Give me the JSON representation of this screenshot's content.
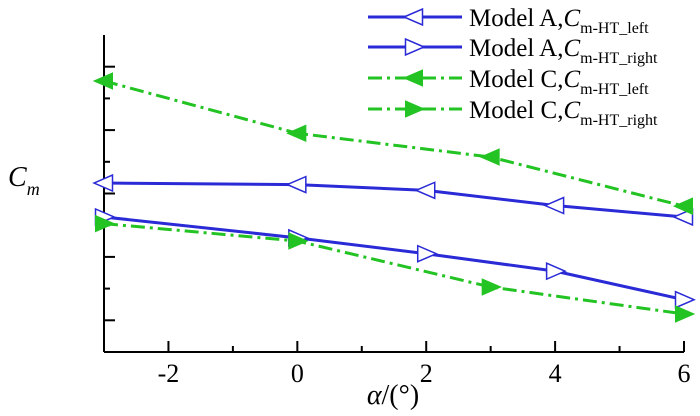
{
  "chart_data": {
    "type": "line",
    "xlabel_italic": "α",
    "xlabel_rest": "/(°)",
    "ylabel_main": "C",
    "ylabel_sub": "m",
    "xlim": [
      -3,
      6
    ],
    "ylim": [
      0,
      1
    ],
    "x_ticks": [
      -2,
      0,
      2,
      4,
      6
    ],
    "x_tick_labels": [
      "-2",
      "0",
      "2",
      "4",
      "6"
    ],
    "y_ticks": [
      0.1,
      0.3,
      0.5,
      0.7,
      0.9
    ],
    "y_tick_labels_shown": false,
    "grid": false,
    "legend_position": "top-right",
    "series": [
      {
        "label_main": "Model A,",
        "label_italic": "C",
        "label_sub": "m-HT_left",
        "color": "#2a2ad6",
        "line_style": "solid",
        "marker": "triangle-left",
        "marker_filled": false,
        "x": [
          -3,
          0,
          2,
          4,
          6
        ],
        "y": [
          0.533,
          0.528,
          0.51,
          0.462,
          0.426
        ]
      },
      {
        "label_main": "Model A,",
        "label_italic": "C",
        "label_sub": "m-HT_right",
        "color": "#2a2ad6",
        "line_style": "solid",
        "marker": "triangle-right",
        "marker_filled": false,
        "x": [
          -3,
          0,
          2,
          4,
          6
        ],
        "y": [
          0.426,
          0.36,
          0.31,
          0.255,
          0.165
        ]
      },
      {
        "label_main": "Model C,",
        "label_italic": "C",
        "label_sub": "m-HT_left",
        "color": "#22c322",
        "line_style": "dashdot",
        "marker": "triangle-left",
        "marker_filled": true,
        "x": [
          -3,
          0,
          3,
          6
        ],
        "y": [
          0.855,
          0.69,
          0.615,
          0.46
        ]
      },
      {
        "label_main": "Model C,",
        "label_italic": "C",
        "label_sub": "m-HT_right",
        "color": "#22c322",
        "line_style": "dashdot",
        "marker": "triangle-right",
        "marker_filled": true,
        "x": [
          -3,
          0,
          3,
          6
        ],
        "y": [
          0.405,
          0.35,
          0.205,
          0.12
        ]
      }
    ]
  }
}
